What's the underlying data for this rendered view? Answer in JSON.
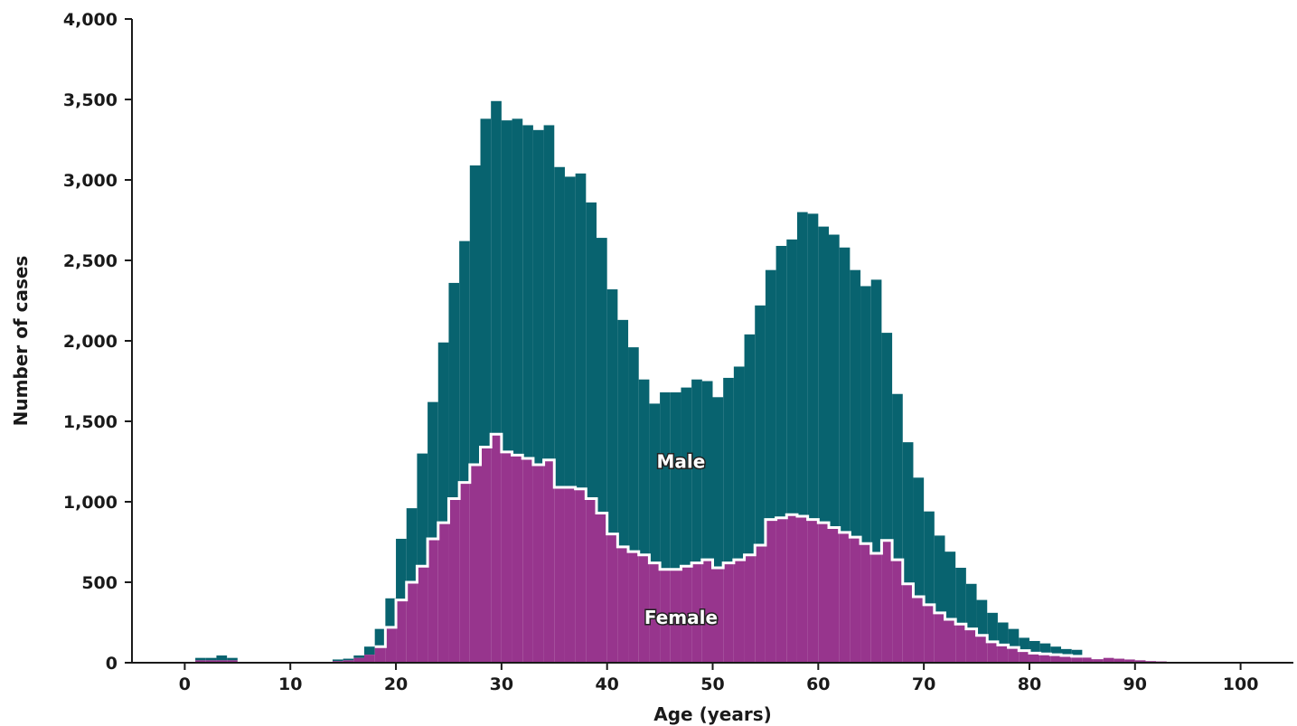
{
  "chart_data": {
    "type": "bar",
    "xlabel": "Age (years)",
    "ylabel": "Number of cases",
    "xlim": [
      -5,
      105
    ],
    "ylim": [
      0,
      4000
    ],
    "x_ticks": [
      0,
      10,
      20,
      30,
      40,
      50,
      60,
      70,
      80,
      90,
      100
    ],
    "y_ticks": [
      0,
      500,
      1000,
      1500,
      2000,
      2500,
      3000,
      3500,
      4000
    ],
    "x_tick_labels": [
      "0",
      "10",
      "20",
      "30",
      "40",
      "50",
      "60",
      "70",
      "80",
      "90",
      "100"
    ],
    "y_tick_labels": [
      "0",
      "500",
      "1,000",
      "1,500",
      "2,000",
      "2,500",
      "3,000",
      "3,500",
      "4,000"
    ],
    "grid": false,
    "stacked": true,
    "bin_width": 1,
    "x": [
      0,
      1,
      2,
      3,
      4,
      5,
      6,
      7,
      8,
      9,
      10,
      11,
      12,
      13,
      14,
      15,
      16,
      17,
      18,
      19,
      20,
      21,
      22,
      23,
      24,
      25,
      26,
      27,
      28,
      29,
      30,
      31,
      32,
      33,
      34,
      35,
      36,
      37,
      38,
      39,
      40,
      41,
      42,
      43,
      44,
      45,
      46,
      47,
      48,
      49,
      50,
      51,
      52,
      53,
      54,
      55,
      56,
      57,
      58,
      59,
      60,
      61,
      62,
      63,
      64,
      65,
      66,
      67,
      68,
      69,
      70,
      71,
      72,
      73,
      74,
      75,
      76,
      77,
      78,
      79,
      80,
      81,
      82,
      83,
      84,
      85,
      86,
      87,
      88,
      89,
      90,
      91,
      92,
      93,
      94,
      95,
      96,
      97,
      98,
      99
    ],
    "series": [
      {
        "name": "Male",
        "color": "#08636f",
        "values": [
          0,
          15,
          15,
          30,
          15,
          0,
          0,
          0,
          0,
          0,
          0,
          0,
          0,
          0,
          10,
          10,
          15,
          50,
          110,
          180,
          380,
          460,
          700,
          850,
          1120,
          1340,
          1500,
          1860,
          2040,
          2070,
          2060,
          2090,
          2070,
          2080,
          2080,
          1990,
          1930,
          1960,
          1840,
          1710,
          1520,
          1410,
          1270,
          1090,
          990,
          1100,
          1100,
          1110,
          1140,
          1110,
          1060,
          1150,
          1200,
          1370,
          1490,
          1550,
          1690,
          1710,
          1890,
          1900,
          1840,
          1820,
          1770,
          1660,
          1600,
          1700,
          1290,
          1030,
          880,
          740,
          580,
          480,
          420,
          350,
          280,
          220,
          180,
          140,
          115,
          80,
          75,
          65,
          50,
          40,
          40,
          0,
          0,
          0,
          0,
          0,
          0,
          0,
          0,
          0,
          0,
          0,
          0,
          0,
          0,
          0
        ]
      },
      {
        "name": "Female",
        "color": "#97358d",
        "values": [
          0,
          15,
          15,
          15,
          15,
          0,
          0,
          0,
          0,
          0,
          0,
          0,
          0,
          0,
          10,
          15,
          30,
          50,
          100,
          220,
          390,
          500,
          600,
          770,
          870,
          1020,
          1120,
          1230,
          1340,
          1420,
          1310,
          1290,
          1270,
          1230,
          1260,
          1090,
          1090,
          1080,
          1020,
          930,
          800,
          720,
          690,
          670,
          620,
          580,
          580,
          600,
          620,
          640,
          590,
          620,
          640,
          670,
          730,
          890,
          900,
          920,
          910,
          890,
          870,
          840,
          810,
          780,
          740,
          680,
          760,
          640,
          490,
          410,
          360,
          310,
          270,
          240,
          210,
          170,
          130,
          110,
          95,
          75,
          60,
          55,
          50,
          45,
          40,
          40,
          30,
          30,
          25,
          20,
          15,
          10,
          8,
          0,
          0,
          0,
          0,
          0,
          0,
          0
        ]
      }
    ],
    "annotations": [
      {
        "text": "Male",
        "x": 47,
        "y": 1250
      },
      {
        "text": "Female",
        "x": 47,
        "y": 280
      }
    ],
    "colors": {
      "axis": "#1a1a1a",
      "divider": "#ffffff"
    }
  }
}
